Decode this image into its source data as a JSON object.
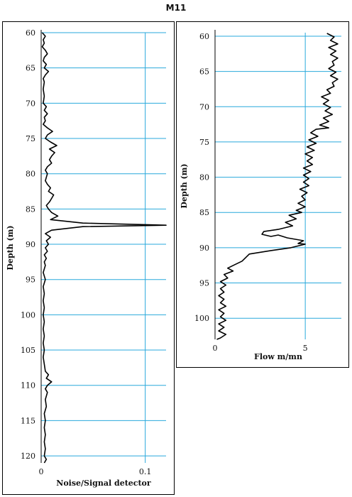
{
  "title": "M11",
  "colors": {
    "grid": "#29a9dc",
    "line": "#000000",
    "frame": "#000000"
  },
  "chart_data": [
    {
      "type": "line",
      "name": "noise-signal",
      "title": "",
      "xlabel": "Noise/Signal detector",
      "ylabel": "Depth (m)",
      "xlim": [
        0,
        0.12
      ],
      "ylim": [
        121,
        60
      ],
      "xticks": [
        0,
        0.1
      ],
      "xtick_labels": [
        "0",
        "0.1"
      ],
      "yticks": [
        60,
        65,
        70,
        75,
        80,
        85,
        90,
        95,
        100,
        105,
        110,
        115,
        120
      ],
      "y_inverted": true,
      "grid": true,
      "series": [
        {
          "points": [
            [
              0.001,
              60
            ],
            [
              0.004,
              60.5
            ],
            [
              0.002,
              61
            ],
            [
              0.003,
              61.5
            ],
            [
              0.001,
              62
            ],
            [
              0.004,
              62.5
            ],
            [
              0.006,
              63
            ],
            [
              0.003,
              63.5
            ],
            [
              0.002,
              64
            ],
            [
              0.005,
              64.5
            ],
            [
              0.003,
              65
            ],
            [
              0.007,
              65.5
            ],
            [
              0.004,
              66
            ],
            [
              0.002,
              66.5
            ],
            [
              0.003,
              67
            ],
            [
              0.002,
              68
            ],
            [
              0.003,
              69
            ],
            [
              0.002,
              70
            ],
            [
              0.005,
              70.5
            ],
            [
              0.003,
              71
            ],
            [
              0.006,
              71.5
            ],
            [
              0.003,
              72
            ],
            [
              0.004,
              72.5
            ],
            [
              0.002,
              73
            ],
            [
              0.006,
              73.5
            ],
            [
              0.011,
              74
            ],
            [
              0.006,
              74.5
            ],
            [
              0.004,
              75
            ],
            [
              0.009,
              75.5
            ],
            [
              0.015,
              76
            ],
            [
              0.008,
              76.5
            ],
            [
              0.013,
              77
            ],
            [
              0.01,
              77.5
            ],
            [
              0.008,
              78
            ],
            [
              0.01,
              78.5
            ],
            [
              0.006,
              79
            ],
            [
              0.004,
              79.5
            ],
            [
              0.006,
              80
            ],
            [
              0.005,
              80.5
            ],
            [
              0.004,
              81
            ],
            [
              0.006,
              81.5
            ],
            [
              0.009,
              82
            ],
            [
              0.007,
              82.5
            ],
            [
              0.012,
              83
            ],
            [
              0.01,
              83.5
            ],
            [
              0.008,
              84
            ],
            [
              0.005,
              84.5
            ],
            [
              0.007,
              85
            ],
            [
              0.01,
              85.5
            ],
            [
              0.016,
              86
            ],
            [
              0.009,
              86.5
            ],
            [
              0.04,
              87
            ],
            [
              0.12,
              87.3
            ],
            [
              0.04,
              87.5
            ],
            [
              0.01,
              88
            ],
            [
              0.004,
              88.5
            ],
            [
              0.009,
              89
            ],
            [
              0.005,
              89.5
            ],
            [
              0.007,
              90
            ],
            [
              0.004,
              90.5
            ],
            [
              0.006,
              91
            ],
            [
              0.003,
              91.5
            ],
            [
              0.005,
              92
            ],
            [
              0.003,
              92.5
            ],
            [
              0.004,
              93
            ],
            [
              0.002,
              94
            ],
            [
              0.004,
              95
            ],
            [
              0.002,
              96
            ],
            [
              0.003,
              97
            ],
            [
              0.002,
              98
            ],
            [
              0.003,
              99
            ],
            [
              0.002,
              100
            ],
            [
              0.003,
              101
            ],
            [
              0.002,
              102
            ],
            [
              0.003,
              103
            ],
            [
              0.002,
              104
            ],
            [
              0.003,
              105
            ],
            [
              0.002,
              106
            ],
            [
              0.003,
              107
            ],
            [
              0.004,
              108
            ],
            [
              0.007,
              108.5
            ],
            [
              0.005,
              109
            ],
            [
              0.01,
              109.5
            ],
            [
              0.006,
              110
            ],
            [
              0.004,
              110.5
            ],
            [
              0.006,
              111
            ],
            [
              0.004,
              112
            ],
            [
              0.005,
              113
            ],
            [
              0.003,
              114
            ],
            [
              0.004,
              115
            ],
            [
              0.003,
              116
            ],
            [
              0.004,
              117
            ],
            [
              0.003,
              118
            ],
            [
              0.004,
              119
            ],
            [
              0.003,
              120
            ],
            [
              0.005,
              120.5
            ],
            [
              0.003,
              121
            ]
          ]
        }
      ]
    },
    {
      "type": "line",
      "name": "flow",
      "title": "",
      "xlabel": "Flow m/mn",
      "ylabel": "Depth (m)",
      "xlim": [
        0,
        7
      ],
      "ylim": [
        103,
        59.5
      ],
      "xticks": [
        0,
        5
      ],
      "xtick_labels": [
        "0",
        "5"
      ],
      "yticks": [
        60,
        65,
        70,
        75,
        80,
        85,
        90,
        95,
        100
      ],
      "y_inverted": true,
      "grid": true,
      "series": [
        {
          "points": [
            [
              6.2,
              59.6
            ],
            [
              6.6,
              60.1
            ],
            [
              6.4,
              60.6
            ],
            [
              6.8,
              61.1
            ],
            [
              6.3,
              61.6
            ],
            [
              6.7,
              62.1
            ],
            [
              6.4,
              62.6
            ],
            [
              6.8,
              63.1
            ],
            [
              6.5,
              63.6
            ],
            [
              6.6,
              64.1
            ],
            [
              6.3,
              64.6
            ],
            [
              6.7,
              65.1
            ],
            [
              6.4,
              65.6
            ],
            [
              6.8,
              66.1
            ],
            [
              6.5,
              66.6
            ],
            [
              6.6,
              67.1
            ],
            [
              6.2,
              67.6
            ],
            [
              6.4,
              68.1
            ],
            [
              5.9,
              68.6
            ],
            [
              6.3,
              69.1
            ],
            [
              6.0,
              69.6
            ],
            [
              6.4,
              70.1
            ],
            [
              6.1,
              70.6
            ],
            [
              6.5,
              71.1
            ],
            [
              6.0,
              71.6
            ],
            [
              6.3,
              72.1
            ],
            [
              5.8,
              72.6
            ],
            [
              6.3,
              73.0
            ],
            [
              5.6,
              73.2
            ],
            [
              5.3,
              73.7
            ],
            [
              5.7,
              74.2
            ],
            [
              5.2,
              74.7
            ],
            [
              5.6,
              75.2
            ],
            [
              5.1,
              75.7
            ],
            [
              5.5,
              76.2
            ],
            [
              5.0,
              76.7
            ],
            [
              5.4,
              77.2
            ],
            [
              5.1,
              77.7
            ],
            [
              5.4,
              78.2
            ],
            [
              4.9,
              78.7
            ],
            [
              5.3,
              79.2
            ],
            [
              4.9,
              79.7
            ],
            [
              5.2,
              80.2
            ],
            [
              4.9,
              80.7
            ],
            [
              5.2,
              81.2
            ],
            [
              4.7,
              81.7
            ],
            [
              5.1,
              82.2
            ],
            [
              4.8,
              82.7
            ],
            [
              5.0,
              83.2
            ],
            [
              4.6,
              83.7
            ],
            [
              5.0,
              84.2
            ],
            [
              4.5,
              84.7
            ],
            [
              4.8,
              85.0
            ],
            [
              4.1,
              85.4
            ],
            [
              4.5,
              85.9
            ],
            [
              3.9,
              86.4
            ],
            [
              4.3,
              86.9
            ],
            [
              3.5,
              87.4
            ],
            [
              2.7,
              87.7
            ],
            [
              2.6,
              88.1
            ],
            [
              3.1,
              88.4
            ],
            [
              3.5,
              88.2
            ],
            [
              4.0,
              88.6
            ],
            [
              4.9,
              89.0
            ],
            [
              4.6,
              89.4
            ],
            [
              5.0,
              89.5
            ],
            [
              4.2,
              90.0
            ],
            [
              3.1,
              90.4
            ],
            [
              1.9,
              90.9
            ],
            [
              1.7,
              91.4
            ],
            [
              1.5,
              91.9
            ],
            [
              1.1,
              92.4
            ],
            [
              0.7,
              92.9
            ],
            [
              1.0,
              93.3
            ],
            [
              0.5,
              93.8
            ],
            [
              0.7,
              94.3
            ],
            [
              0.3,
              94.8
            ],
            [
              0.6,
              95.3
            ],
            [
              0.3,
              95.8
            ],
            [
              0.5,
              96.3
            ],
            [
              0.2,
              96.8
            ],
            [
              0.5,
              97.3
            ],
            [
              0.3,
              97.8
            ],
            [
              0.6,
              98.3
            ],
            [
              0.2,
              98.8
            ],
            [
              0.5,
              99.3
            ],
            [
              0.3,
              99.8
            ],
            [
              0.6,
              100.3
            ],
            [
              0.2,
              100.8
            ],
            [
              0.5,
              101.3
            ],
            [
              0.2,
              101.8
            ],
            [
              0.6,
              102.3
            ],
            [
              0.3,
              102.8
            ],
            [
              0.1,
              103.0
            ]
          ]
        }
      ]
    }
  ]
}
